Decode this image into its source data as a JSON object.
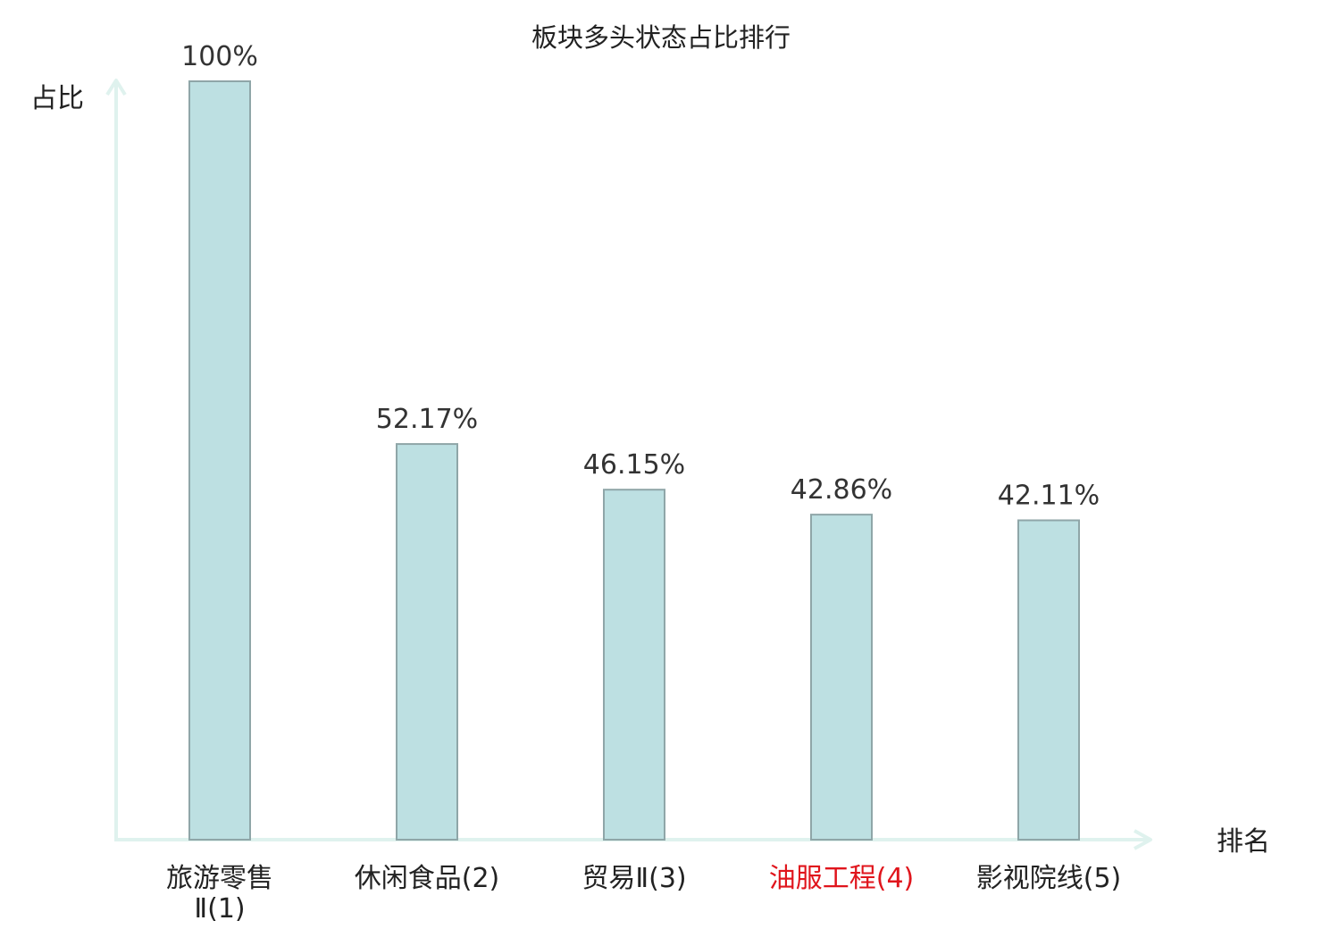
{
  "chart_data": {
    "type": "bar",
    "title": "板块多头状态占比排行",
    "ylabel": "占比",
    "xlabel": "排名",
    "ylim": [
      0,
      100
    ],
    "grid": false,
    "categories": [
      [
        "旅游零售",
        "Ⅱ(1)"
      ],
      [
        "休闲食品(2)"
      ],
      [
        "贸易Ⅱ(3)"
      ],
      [
        "油服工程(4)"
      ],
      [
        "影视院线(5)"
      ]
    ],
    "values": [
      100,
      52.17,
      46.15,
      42.86,
      42.11
    ],
    "value_labels": [
      "100%",
      "52.17%",
      "46.15%",
      "42.86%",
      "42.11%"
    ],
    "highlight_index": 3,
    "colors": {
      "bar_fill": "#bde0e2",
      "bar_stroke": "#8fa6a8",
      "axis": "#dff2ee",
      "highlight_text": "#e0151c"
    }
  }
}
